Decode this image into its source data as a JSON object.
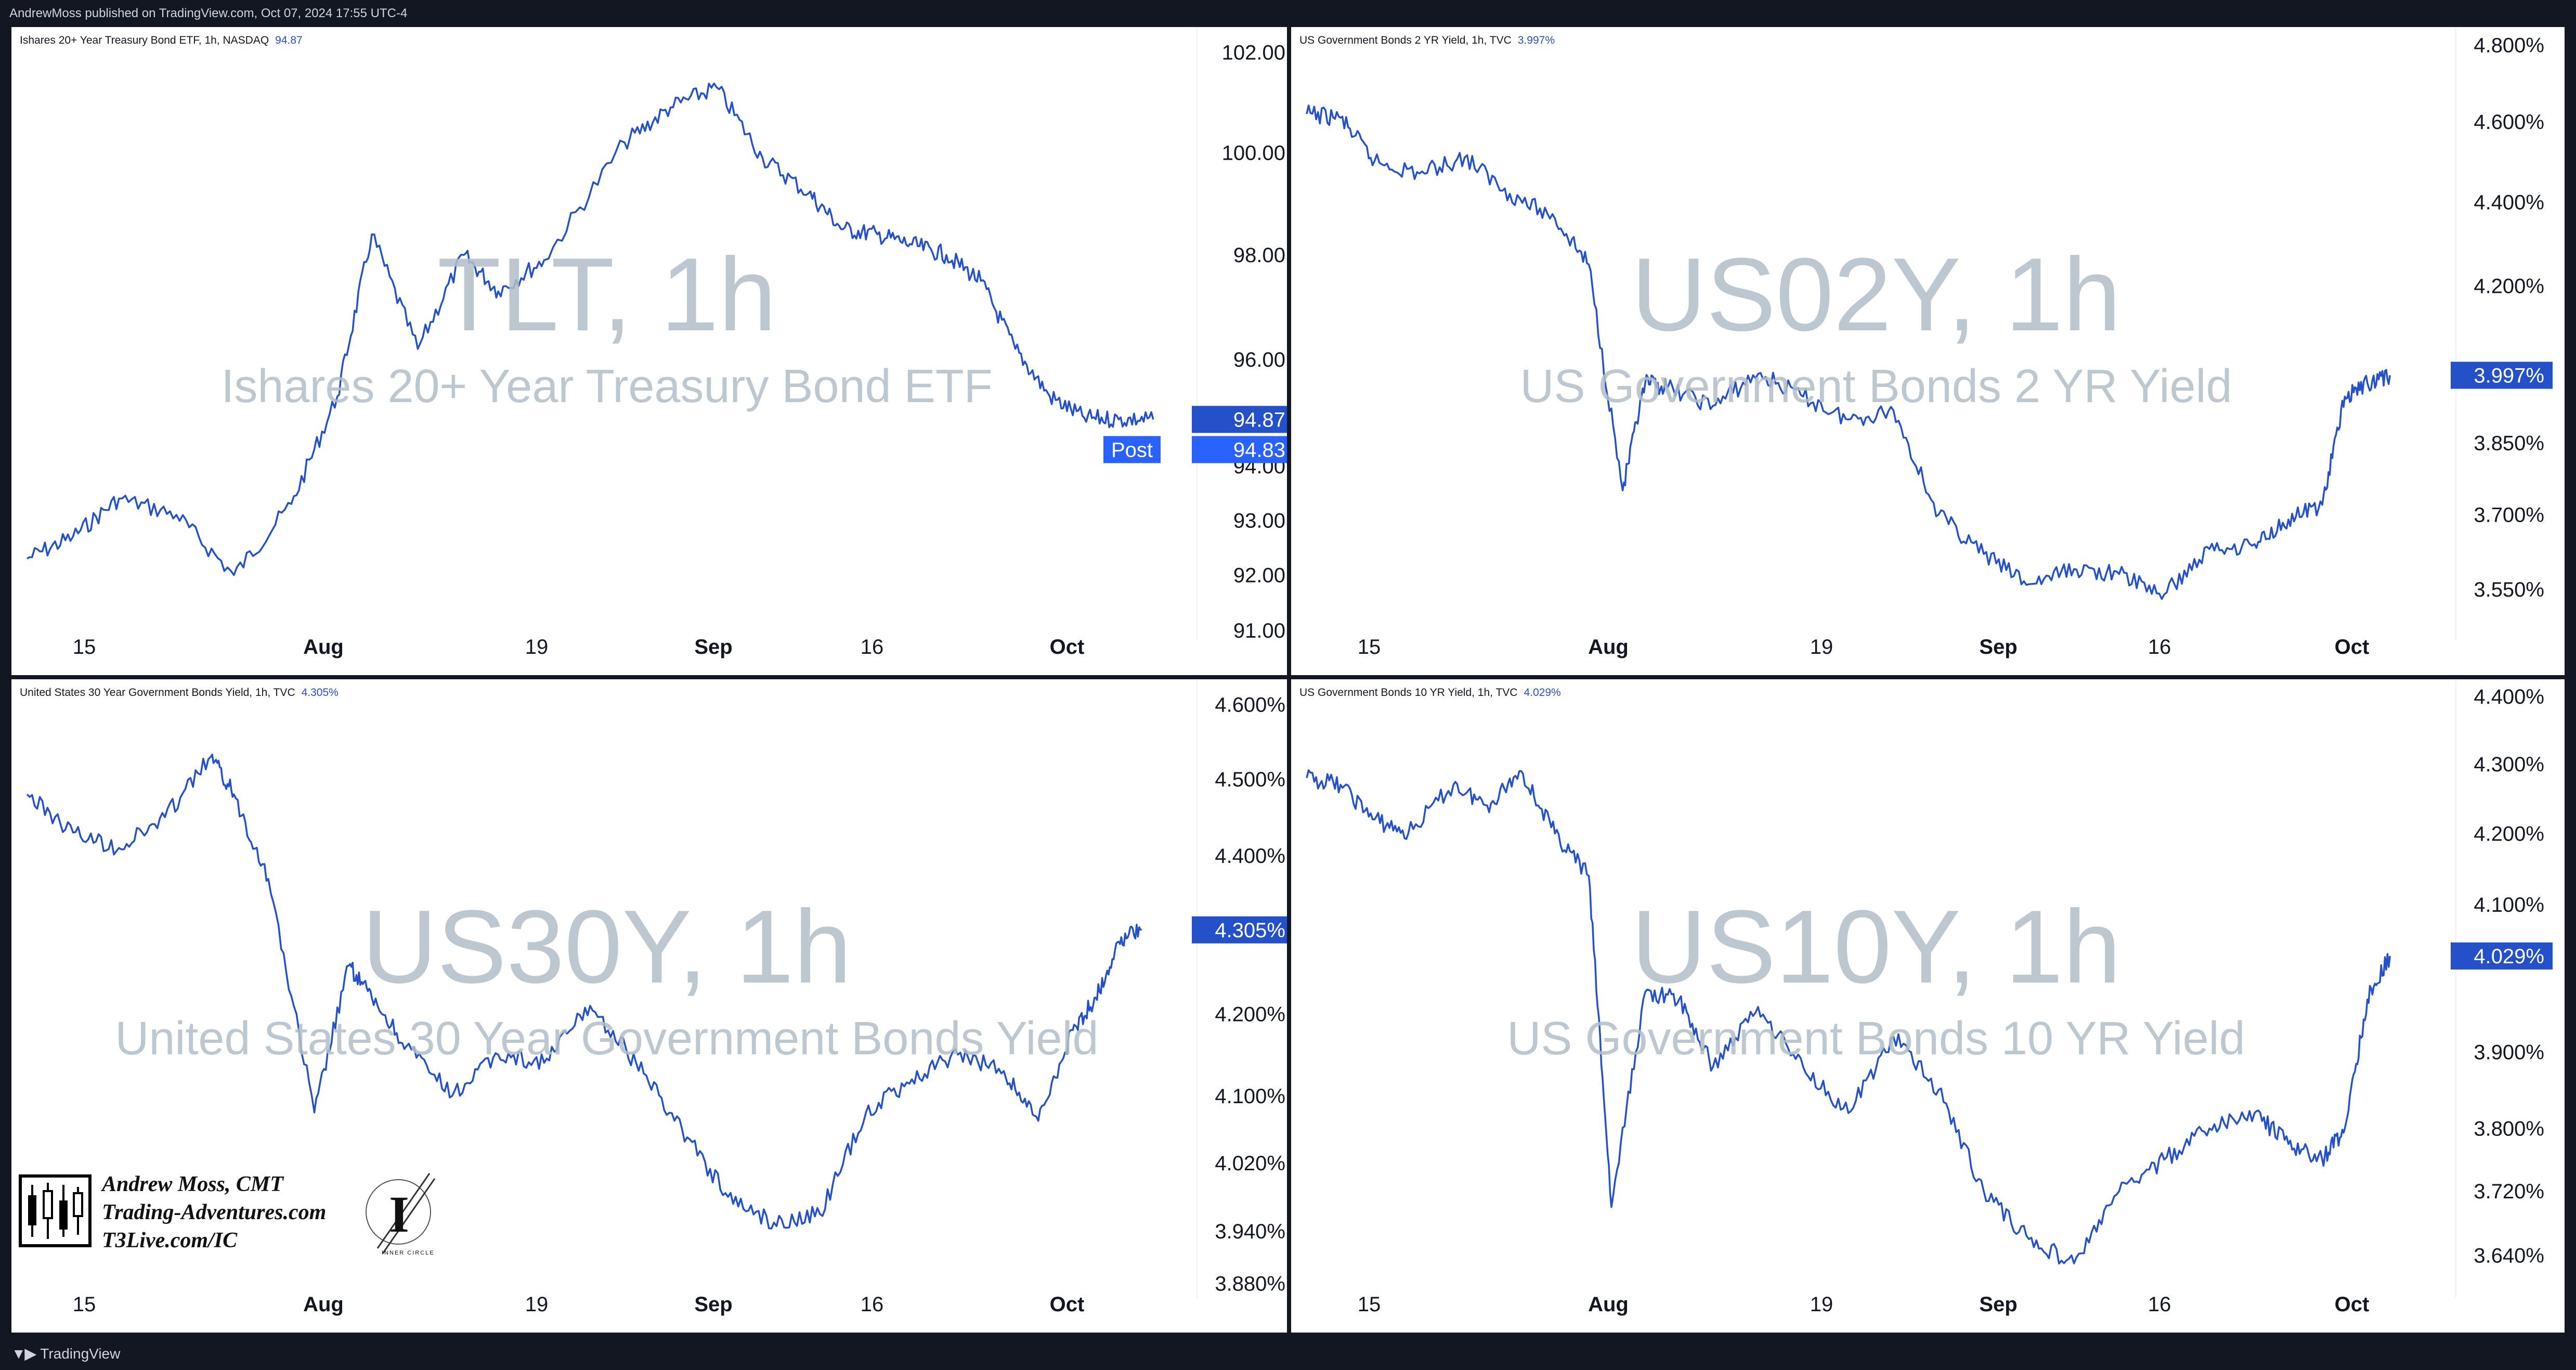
{
  "header": {
    "publisher_line": "AndrewMoss published on TradingView.com, Oct 07, 2024 17:55 UTC-4"
  },
  "footer": {
    "logo_label": "TradingView"
  },
  "colors": {
    "line": "#2451c9",
    "badge": "#2451c9",
    "post_badge": "#2962ff",
    "watermark": "#b2bec8",
    "frame": "#131722"
  },
  "branding": {
    "line1": "Andrew Moss, CMT",
    "line2": "Trading-Adventures.com",
    "line3": "T3Live.com/IC",
    "seal_letter": "I",
    "seal_caption": "INNER CIRCLE"
  },
  "chart_data": [
    {
      "type": "line",
      "symbol": "TLT, 1h",
      "legend": "Ishares 20+ Year Treasury Bond ETF, 1h, NASDAQ",
      "legend_value": "94.87",
      "title": "TLT, 1h",
      "subtitle": "Ishares 20+ Year Treasury Bond ETF",
      "x_ticks": [
        "15",
        "Aug",
        "19",
        "Sep",
        "16",
        "Oct"
      ],
      "y_ticks": [
        "102.00",
        "100.00",
        "98.00",
        "96.00",
        "94.00",
        "93.00",
        "92.00",
        "91.00"
      ],
      "y_tick_values": [
        102,
        100,
        98,
        96,
        94,
        93,
        92,
        91
      ],
      "y_scale": "log",
      "ylim": [
        91,
        102.3
      ],
      "last_value_label": "94.87",
      "post_label": "Post",
      "post_value_label": "94.83",
      "x": [
        0,
        0.04,
        0.08,
        0.13,
        0.18,
        0.23,
        0.27,
        0.3,
        0.34,
        0.38,
        0.41,
        0.45,
        0.52,
        0.56,
        0.6,
        0.64,
        0.68,
        0.71,
        0.74,
        0.77,
        0.8,
        0.83,
        0.86,
        0.89,
        0.92,
        0.95,
        0.98
      ],
      "values": [
        92.3,
        92.7,
        93.4,
        93.1,
        92.0,
        93.3,
        95.3,
        98.4,
        96.2,
        98.0,
        97.3,
        97.9,
        100.2,
        100.9,
        101.3,
        99.9,
        99.2,
        98.5,
        98.4,
        98.2,
        98.0,
        97.5,
        96.2,
        95.3,
        94.9,
        94.87,
        94.87
      ]
    },
    {
      "type": "line",
      "symbol": "US02Y, 1h",
      "legend": "US Government Bonds 2 YR Yield, 1h, TVC",
      "legend_value": "3.997%",
      "title": "US02Y, 1h",
      "subtitle": "US Government Bonds 2 YR Yield",
      "x_ticks": [
        "15",
        "Aug",
        "19",
        "Sep",
        "16",
        "Oct"
      ],
      "y_ticks": [
        "4.800%",
        "4.600%",
        "4.400%",
        "4.200%",
        "3.997%",
        "3.850%",
        "3.700%",
        "3.550%"
      ],
      "y_tick_values": [
        4.8,
        4.6,
        4.4,
        4.2,
        3.997,
        3.85,
        3.7,
        3.55
      ],
      "y_scale": "log",
      "ylim": [
        3.47,
        4.82
      ],
      "last_value_label": "3.997%",
      "x": [
        0,
        0.03,
        0.06,
        0.1,
        0.14,
        0.18,
        0.22,
        0.25,
        0.28,
        0.3,
        0.32,
        0.36,
        0.4,
        0.44,
        0.48,
        0.52,
        0.56,
        0.6,
        0.64,
        0.68,
        0.72,
        0.76,
        0.8,
        0.84,
        0.87,
        0.9,
        0.92,
        0.94,
        0.96
      ],
      "values": [
        4.62,
        4.61,
        4.5,
        4.47,
        4.51,
        4.42,
        4.36,
        4.25,
        3.75,
        3.98,
        3.97,
        3.93,
        4.0,
        3.95,
        3.9,
        3.92,
        3.7,
        3.62,
        3.56,
        3.59,
        3.58,
        3.54,
        3.63,
        3.64,
        3.69,
        3.72,
        3.95,
        3.98,
        3.997
      ]
    },
    {
      "type": "line",
      "symbol": "US30Y, 1h",
      "legend": "United States 30 Year Government Bonds Yield, 1h, TVC",
      "legend_value": "4.305%",
      "title": "US30Y, 1h",
      "subtitle": "United States 30 Year Government Bonds Yield",
      "x_ticks": [
        "15",
        "Aug",
        "19",
        "Sep",
        "16",
        "Oct"
      ],
      "y_ticks": [
        "4.600%",
        "4.500%",
        "4.400%",
        "4.305%",
        "4.200%",
        "4.100%",
        "4.020%",
        "3.940%",
        "3.880%"
      ],
      "y_tick_values": [
        4.6,
        4.5,
        4.4,
        4.305,
        4.2,
        4.1,
        4.02,
        3.94,
        3.88
      ],
      "y_scale": "log",
      "ylim": [
        3.875,
        4.62
      ],
      "last_value_label": "4.305%",
      "x": [
        0,
        0.04,
        0.08,
        0.12,
        0.16,
        0.18,
        0.21,
        0.25,
        0.28,
        0.3,
        0.33,
        0.37,
        0.41,
        0.45,
        0.49,
        0.53,
        0.57,
        0.61,
        0.65,
        0.69,
        0.73,
        0.77,
        0.81,
        0.85,
        0.88,
        0.91,
        0.93,
        0.95,
        0.97
      ],
      "values": [
        4.48,
        4.43,
        4.41,
        4.45,
        4.53,
        4.48,
        4.37,
        4.08,
        4.26,
        4.22,
        4.16,
        4.1,
        4.15,
        4.14,
        4.21,
        4.14,
        4.06,
        3.98,
        3.95,
        3.96,
        4.08,
        4.12,
        4.15,
        4.13,
        4.07,
        4.18,
        4.22,
        4.29,
        4.305
      ]
    },
    {
      "type": "line",
      "symbol": "US10Y, 1h",
      "legend": "US Government Bonds 10 YR Yield, 1h, TVC",
      "legend_value": "4.029%",
      "title": "US10Y, 1h",
      "subtitle": "US Government Bonds 10 YR Yield",
      "x_ticks": [
        "15",
        "Aug",
        "19",
        "Sep",
        "16",
        "Oct"
      ],
      "y_ticks": [
        "4.400%",
        "4.300%",
        "4.200%",
        "4.100%",
        "4.029%",
        "3.900%",
        "3.800%",
        "3.720%",
        "3.640%"
      ],
      "y_tick_values": [
        4.4,
        4.3,
        4.2,
        4.1,
        4.029,
        3.9,
        3.8,
        3.72,
        3.64
      ],
      "y_scale": "log",
      "ylim": [
        3.6,
        4.41
      ],
      "last_value_label": "4.029%",
      "x": [
        0,
        0.03,
        0.06,
        0.09,
        0.13,
        0.16,
        0.19,
        0.22,
        0.25,
        0.27,
        0.3,
        0.33,
        0.36,
        0.4,
        0.44,
        0.48,
        0.52,
        0.56,
        0.6,
        0.64,
        0.68,
        0.72,
        0.76,
        0.8,
        0.84,
        0.87,
        0.9,
        0.92,
        0.94,
        0.96
      ],
      "values": [
        4.28,
        4.27,
        4.22,
        4.2,
        4.27,
        4.24,
        4.29,
        4.2,
        4.14,
        3.7,
        3.98,
        3.97,
        3.88,
        3.96,
        3.88,
        3.82,
        3.92,
        3.85,
        3.72,
        3.66,
        3.63,
        3.72,
        3.76,
        3.8,
        3.82,
        3.78,
        3.76,
        3.8,
        3.97,
        4.029
      ]
    }
  ]
}
